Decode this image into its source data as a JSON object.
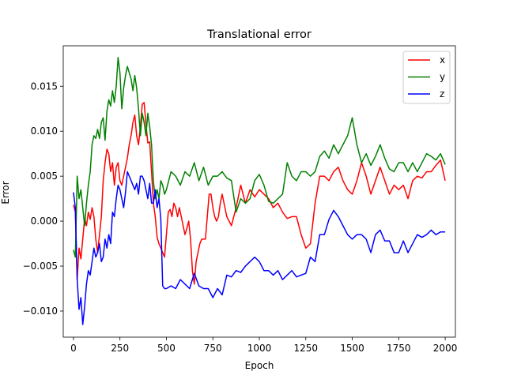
{
  "chart_data": {
    "type": "line",
    "title": "Translational error",
    "xlabel": "Epoch",
    "ylabel": "Error",
    "xlim": [
      -55,
      2055
    ],
    "ylim": [
      -0.0129,
      0.0195
    ],
    "x_ticks": [
      0,
      250,
      500,
      750,
      1000,
      1250,
      1500,
      1750,
      2000
    ],
    "x_tick_labels": [
      "0",
      "250",
      "500",
      "750",
      "1000",
      "1250",
      "1500",
      "1750",
      "2000"
    ],
    "y_ticks": [
      -0.01,
      -0.005,
      0.0,
      0.005,
      0.01,
      0.015
    ],
    "y_tick_labels": [
      "−0.010",
      "−0.005",
      "0.000",
      "0.005",
      "0.010",
      "0.015"
    ],
    "grid": false,
    "legend_position": "top-right",
    "series": [
      {
        "name": "x",
        "color": "#ff0000",
        "x": [
          0,
          10,
          20,
          30,
          40,
          50,
          60,
          70,
          80,
          90,
          100,
          110,
          120,
          130,
          140,
          150,
          160,
          170,
          180,
          190,
          200,
          210,
          220,
          230,
          240,
          250,
          260,
          270,
          280,
          290,
          300,
          310,
          320,
          330,
          340,
          350,
          360,
          370,
          380,
          390,
          400,
          410,
          420,
          430,
          440,
          450,
          460,
          470,
          480,
          490,
          500,
          510,
          520,
          530,
          540,
          550,
          560,
          570,
          580,
          590,
          600,
          610,
          620,
          630,
          640,
          650,
          660,
          670,
          680,
          690,
          700,
          710,
          720,
          730,
          740,
          750,
          760,
          770,
          780,
          790,
          800,
          825,
          850,
          875,
          900,
          925,
          950,
          975,
          1000,
          1025,
          1050,
          1075,
          1100,
          1125,
          1150,
          1175,
          1200,
          1225,
          1250,
          1275,
          1300,
          1325,
          1350,
          1375,
          1400,
          1425,
          1450,
          1475,
          1500,
          1525,
          1550,
          1575,
          1600,
          1625,
          1650,
          1675,
          1700,
          1725,
          1750,
          1775,
          1800,
          1825,
          1850,
          1875,
          1900,
          1925,
          1950,
          1975,
          2000
        ],
        "y": [
          0.0018,
          0.001,
          -0.0065,
          -0.003,
          -0.0042,
          -0.002,
          0.0003,
          -0.0005,
          0.001,
          0.0002,
          0.0015,
          0.0005,
          -0.002,
          -0.0035,
          -0.0015,
          0.0005,
          0.0045,
          0.0065,
          0.008,
          0.0075,
          0.0055,
          0.0065,
          0.004,
          0.006,
          0.0065,
          0.0045,
          0.004,
          0.005,
          0.006,
          0.007,
          0.0085,
          0.0095,
          0.011,
          0.0118,
          0.0095,
          0.0085,
          0.0105,
          0.013,
          0.0132,
          0.0108,
          0.0087,
          0.0088,
          0.0055,
          0.002,
          0.0005,
          -0.0018,
          -0.0025,
          -0.003,
          -0.0035,
          -0.004,
          -0.0015,
          0.001,
          0.0013,
          0.0005,
          0.002,
          0.0015,
          0.0005,
          0.0015,
          0.0005,
          -0.0005,
          -0.0015,
          -0.0008,
          0.0,
          -0.002,
          -0.0055,
          -0.007,
          -0.0045,
          -0.0035,
          -0.0025,
          -0.002,
          -0.002,
          -0.002,
          0.0005,
          0.003,
          0.003,
          0.0015,
          0.0005,
          0.0,
          0.0005,
          0.002,
          0.003,
          0.0005,
          -0.0005,
          0.0015,
          0.004,
          0.002,
          0.0035,
          0.0027,
          0.0035,
          0.003,
          0.0025,
          0.0015,
          0.002,
          0.001,
          0.0003,
          0.0005,
          0.0005,
          -0.0015,
          -0.003,
          -0.0025,
          0.002,
          0.005,
          0.005,
          0.0045,
          0.0055,
          0.006,
          0.0045,
          0.0035,
          0.003,
          0.0045,
          0.0065,
          0.005,
          0.003,
          0.0045,
          0.006,
          0.0045,
          0.003,
          0.004,
          0.0035,
          0.004,
          0.0025,
          0.0045,
          0.005,
          0.0048,
          0.0055,
          0.0055,
          0.0062,
          0.0068,
          0.0045
        ]
      },
      {
        "name": "y",
        "color": "#008000",
        "x": [
          0,
          10,
          20,
          30,
          40,
          50,
          60,
          70,
          80,
          90,
          100,
          110,
          120,
          130,
          140,
          150,
          160,
          170,
          180,
          190,
          200,
          210,
          220,
          230,
          240,
          250,
          260,
          270,
          280,
          290,
          300,
          310,
          320,
          330,
          340,
          350,
          360,
          370,
          380,
          390,
          400,
          410,
          420,
          430,
          440,
          450,
          460,
          470,
          480,
          490,
          500,
          525,
          550,
          575,
          600,
          625,
          650,
          675,
          700,
          725,
          750,
          775,
          800,
          825,
          850,
          875,
          900,
          925,
          950,
          975,
          1000,
          1025,
          1050,
          1075,
          1100,
          1125,
          1150,
          1175,
          1200,
          1225,
          1250,
          1275,
          1300,
          1325,
          1350,
          1375,
          1400,
          1425,
          1450,
          1475,
          1500,
          1525,
          1550,
          1575,
          1600,
          1625,
          1650,
          1675,
          1700,
          1725,
          1750,
          1775,
          1800,
          1825,
          1850,
          1875,
          1900,
          1925,
          1950,
          1975,
          2000
        ],
        "y": [
          -0.0032,
          -0.004,
          0.005,
          0.0025,
          0.0035,
          0.0015,
          -0.0005,
          0.002,
          0.004,
          0.0055,
          0.0085,
          0.0095,
          0.0092,
          0.0102,
          0.0092,
          0.011,
          0.0115,
          0.009,
          0.0122,
          0.0135,
          0.0128,
          0.0145,
          0.0132,
          0.015,
          0.0182,
          0.0165,
          0.0125,
          0.0148,
          0.0162,
          0.0172,
          0.0165,
          0.0158,
          0.0145,
          0.0162,
          0.0148,
          0.0125,
          0.0095,
          0.012,
          0.011,
          0.0095,
          0.012,
          0.0105,
          0.0085,
          0.0045,
          0.0025,
          0.0035,
          0.0025,
          0.0045,
          0.004,
          0.003,
          0.0035,
          0.0055,
          0.005,
          0.004,
          0.0055,
          0.005,
          0.0065,
          0.0045,
          0.006,
          0.004,
          0.005,
          0.005,
          0.0055,
          0.0048,
          0.0045,
          0.001,
          0.0025,
          0.002,
          0.0025,
          0.0045,
          0.0052,
          0.004,
          0.0022,
          0.002,
          0.0025,
          0.003,
          0.0065,
          0.005,
          0.0045,
          0.0055,
          0.0055,
          0.005,
          0.0055,
          0.0072,
          0.0078,
          0.007,
          0.0085,
          0.0075,
          0.0085,
          0.0095,
          0.0115,
          0.0085,
          0.0065,
          0.0075,
          0.0062,
          0.0072,
          0.0085,
          0.007,
          0.0058,
          0.0055,
          0.0065,
          0.0065,
          0.0055,
          0.0065,
          0.0055,
          0.0065,
          0.0075,
          0.0072,
          0.0068,
          0.0075,
          0.0063
        ]
      },
      {
        "name": "z",
        "color": "#0000ff",
        "x": [
          0,
          10,
          20,
          30,
          40,
          50,
          60,
          70,
          80,
          90,
          100,
          110,
          120,
          130,
          140,
          150,
          160,
          170,
          180,
          190,
          200,
          210,
          220,
          230,
          240,
          250,
          260,
          270,
          280,
          290,
          300,
          310,
          320,
          330,
          340,
          350,
          360,
          370,
          380,
          390,
          400,
          410,
          420,
          430,
          440,
          450,
          460,
          470,
          480,
          490,
          500,
          525,
          550,
          575,
          600,
          625,
          650,
          675,
          700,
          725,
          750,
          775,
          800,
          825,
          850,
          875,
          900,
          925,
          950,
          975,
          1000,
          1025,
          1050,
          1075,
          1100,
          1125,
          1150,
          1175,
          1200,
          1225,
          1250,
          1275,
          1300,
          1325,
          1350,
          1375,
          1400,
          1425,
          1450,
          1475,
          1500,
          1525,
          1550,
          1575,
          1600,
          1625,
          1650,
          1675,
          1700,
          1725,
          1750,
          1775,
          1800,
          1825,
          1850,
          1875,
          1900,
          1925,
          1950,
          1975,
          2000
        ],
        "y": [
          0.0032,
          0.0015,
          -0.0065,
          -0.0098,
          -0.0085,
          -0.0115,
          -0.0095,
          -0.007,
          -0.0055,
          -0.006,
          -0.0045,
          -0.003,
          -0.004,
          -0.0035,
          -0.0025,
          -0.0045,
          -0.004,
          -0.002,
          -0.003,
          -0.0015,
          -0.0025,
          0.001,
          0.0005,
          0.0025,
          0.004,
          0.0035,
          0.0025,
          0.0015,
          0.0032,
          0.0055,
          0.005,
          0.0045,
          0.004,
          0.0035,
          0.0042,
          0.003,
          0.005,
          0.005,
          0.0045,
          0.0035,
          0.0025,
          0.0042,
          0.002,
          0.002,
          0.0035,
          0.0015,
          0.0025,
          0.0002,
          -0.0072,
          -0.0075,
          -0.0075,
          -0.0072,
          -0.0075,
          -0.0065,
          -0.007,
          -0.0075,
          -0.0058,
          -0.0072,
          -0.0075,
          -0.0075,
          -0.0085,
          -0.0075,
          -0.0082,
          -0.006,
          -0.0062,
          -0.0055,
          -0.0057,
          -0.005,
          -0.0045,
          -0.004,
          -0.0045,
          -0.0055,
          -0.0055,
          -0.006,
          -0.0055,
          -0.0065,
          -0.006,
          -0.0055,
          -0.0062,
          -0.006,
          -0.0058,
          -0.004,
          -0.0045,
          -0.0015,
          -0.0015,
          0.0002,
          0.0012,
          0.0005,
          -0.0005,
          -0.0015,
          -0.002,
          -0.0015,
          -0.0015,
          -0.002,
          -0.0035,
          -0.0015,
          -0.001,
          -0.0022,
          -0.0022,
          -0.0035,
          -0.0035,
          -0.0022,
          -0.0035,
          -0.0025,
          -0.0015,
          -0.0018,
          -0.0015,
          -0.001,
          -0.0015,
          -0.0012,
          -0.0012
        ]
      }
    ]
  }
}
